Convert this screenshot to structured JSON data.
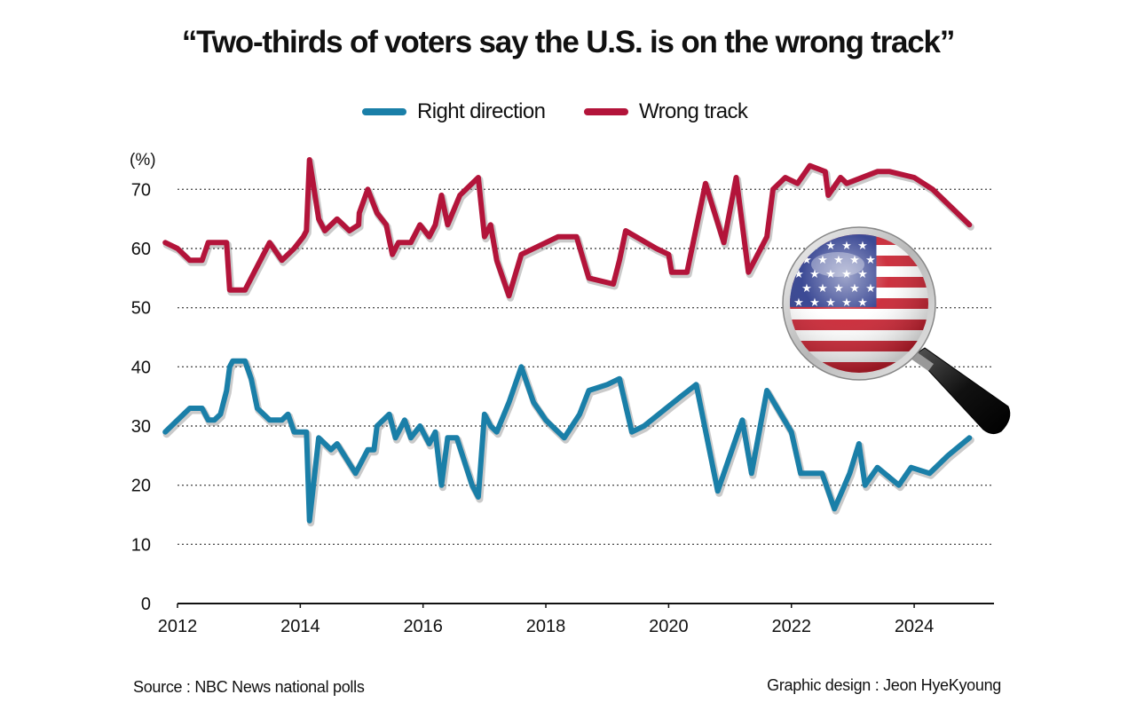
{
  "colors": {
    "right_direction": "#1a7fa8",
    "wrong_track": "#b3143a",
    "grid": "#555555"
  },
  "footer": {
    "source": "Source : NBC News national polls",
    "credit": "Graphic design : Jeon HyeKyoung"
  },
  "icons": [
    "us-flag-magnifying-glass-icon"
  ],
  "chart_data": {
    "type": "line",
    "title": "“Two-thirds of voters say the U.S. is on the wrong track”",
    "ylabel": "(%)",
    "xlabel": "",
    "ylim": [
      0,
      75
    ],
    "xlim": [
      2012,
      2025.3
    ],
    "yticks": [
      0,
      10,
      20,
      30,
      40,
      50,
      60,
      70
    ],
    "xticks": [
      2012,
      2014,
      2016,
      2018,
      2020,
      2022,
      2024
    ],
    "grid": "horizontal dotted",
    "legend_position": "top-center",
    "series": [
      {
        "name": "Right direction",
        "color": "#1a7fa8",
        "points": [
          [
            2011.8,
            29
          ],
          [
            2012.0,
            31
          ],
          [
            2012.2,
            33
          ],
          [
            2012.4,
            33
          ],
          [
            2012.5,
            31
          ],
          [
            2012.6,
            31
          ],
          [
            2012.7,
            32
          ],
          [
            2012.8,
            36
          ],
          [
            2012.85,
            40
          ],
          [
            2012.9,
            41
          ],
          [
            2013.1,
            41
          ],
          [
            2013.2,
            38
          ],
          [
            2013.3,
            33
          ],
          [
            2013.5,
            31
          ],
          [
            2013.7,
            31
          ],
          [
            2013.8,
            32
          ],
          [
            2013.9,
            29
          ],
          [
            2014.1,
            29
          ],
          [
            2014.15,
            14
          ],
          [
            2014.3,
            28
          ],
          [
            2014.5,
            26
          ],
          [
            2014.6,
            27
          ],
          [
            2014.9,
            22
          ],
          [
            2015.1,
            26
          ],
          [
            2015.2,
            26
          ],
          [
            2015.25,
            30
          ],
          [
            2015.45,
            32
          ],
          [
            2015.55,
            28
          ],
          [
            2015.7,
            31
          ],
          [
            2015.8,
            28
          ],
          [
            2015.95,
            30
          ],
          [
            2016.1,
            27
          ],
          [
            2016.2,
            29
          ],
          [
            2016.3,
            20
          ],
          [
            2016.4,
            28
          ],
          [
            2016.55,
            28
          ],
          [
            2016.8,
            20
          ],
          [
            2016.9,
            18
          ],
          [
            2017.0,
            32
          ],
          [
            2017.1,
            30
          ],
          [
            2017.2,
            29
          ],
          [
            2017.4,
            34
          ],
          [
            2017.6,
            40
          ],
          [
            2017.8,
            34
          ],
          [
            2018.0,
            31
          ],
          [
            2018.3,
            28
          ],
          [
            2018.55,
            32
          ],
          [
            2018.7,
            36
          ],
          [
            2019.0,
            37
          ],
          [
            2019.2,
            38
          ],
          [
            2019.4,
            29
          ],
          [
            2019.6,
            30
          ],
          [
            2020.2,
            35
          ],
          [
            2020.45,
            37
          ],
          [
            2020.8,
            19
          ],
          [
            2021.2,
            31
          ],
          [
            2021.35,
            22
          ],
          [
            2021.6,
            36
          ],
          [
            2022.0,
            29
          ],
          [
            2022.15,
            22
          ],
          [
            2022.5,
            22
          ],
          [
            2022.7,
            16
          ],
          [
            2022.95,
            22
          ],
          [
            2023.1,
            27
          ],
          [
            2023.2,
            20
          ],
          [
            2023.4,
            23
          ],
          [
            2023.75,
            20
          ],
          [
            2023.95,
            23
          ],
          [
            2024.25,
            22
          ],
          [
            2024.55,
            25
          ],
          [
            2024.9,
            28
          ]
        ]
      },
      {
        "name": "Wrong track",
        "color": "#b3143a",
        "points": [
          [
            2011.8,
            61
          ],
          [
            2012.0,
            60
          ],
          [
            2012.2,
            58
          ],
          [
            2012.4,
            58
          ],
          [
            2012.5,
            61
          ],
          [
            2012.7,
            61
          ],
          [
            2012.8,
            61
          ],
          [
            2012.85,
            53
          ],
          [
            2013.0,
            53
          ],
          [
            2013.1,
            53
          ],
          [
            2013.3,
            57
          ],
          [
            2013.5,
            61
          ],
          [
            2013.7,
            58
          ],
          [
            2013.9,
            60
          ],
          [
            2014.05,
            62
          ],
          [
            2014.1,
            63
          ],
          [
            2014.15,
            75
          ],
          [
            2014.3,
            65
          ],
          [
            2014.4,
            63
          ],
          [
            2014.6,
            65
          ],
          [
            2014.8,
            63
          ],
          [
            2014.95,
            64
          ],
          [
            2014.96,
            66
          ],
          [
            2015.1,
            70
          ],
          [
            2015.25,
            66
          ],
          [
            2015.4,
            64
          ],
          [
            2015.5,
            59
          ],
          [
            2015.6,
            61
          ],
          [
            2015.8,
            61
          ],
          [
            2015.95,
            64
          ],
          [
            2016.1,
            62
          ],
          [
            2016.2,
            64
          ],
          [
            2016.3,
            69
          ],
          [
            2016.4,
            64
          ],
          [
            2016.6,
            69
          ],
          [
            2016.8,
            71
          ],
          [
            2016.9,
            72
          ],
          [
            2017.0,
            62
          ],
          [
            2017.1,
            64
          ],
          [
            2017.2,
            58
          ],
          [
            2017.4,
            52
          ],
          [
            2017.6,
            59
          ],
          [
            2018.2,
            62
          ],
          [
            2018.5,
            62
          ],
          [
            2018.7,
            55
          ],
          [
            2019.1,
            54
          ],
          [
            2019.2,
            58
          ],
          [
            2019.3,
            63
          ],
          [
            2019.8,
            60
          ],
          [
            2020.0,
            59
          ],
          [
            2020.05,
            56
          ],
          [
            2020.3,
            56
          ],
          [
            2020.6,
            71
          ],
          [
            2020.9,
            61
          ],
          [
            2021.1,
            72
          ],
          [
            2021.3,
            56
          ],
          [
            2021.6,
            62
          ],
          [
            2021.7,
            70
          ],
          [
            2021.9,
            72
          ],
          [
            2022.1,
            71
          ],
          [
            2022.3,
            74
          ],
          [
            2022.55,
            73
          ],
          [
            2022.6,
            69
          ],
          [
            2022.8,
            72
          ],
          [
            2022.9,
            71
          ],
          [
            2023.4,
            73
          ],
          [
            2023.6,
            73
          ],
          [
            2024.0,
            72
          ],
          [
            2024.3,
            70
          ],
          [
            2024.9,
            64
          ]
        ]
      }
    ]
  }
}
